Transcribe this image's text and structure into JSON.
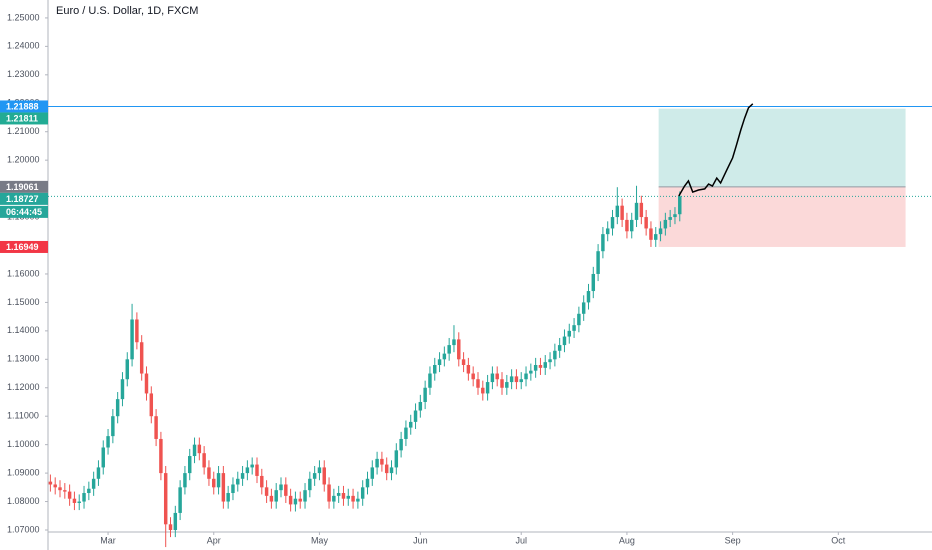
{
  "chart_data": {
    "type": "candlestick",
    "title": "Euro / U.S. Dollar, 1D, FXCM",
    "up_color": "#26a69a",
    "down_color": "#ef5350",
    "xlim": [
      -0.5,
      183.5
    ],
    "ylim": [
      1.07,
      1.2563
    ],
    "xticks": [
      {
        "value": 12,
        "label": "Mar"
      },
      {
        "value": 34,
        "label": "Apr"
      },
      {
        "value": 56,
        "label": "May"
      },
      {
        "value": 77,
        "label": "Jun"
      },
      {
        "value": 98,
        "label": "Jul"
      },
      {
        "value": 120,
        "label": "Aug"
      },
      {
        "value": 142,
        "label": "Sep"
      },
      {
        "value": 164,
        "label": "Oct"
      }
    ],
    "yticks": [
      {
        "value": 1.07,
        "label": "1.07000"
      },
      {
        "value": 1.08,
        "label": "1.08000"
      },
      {
        "value": 1.09,
        "label": "1.09000"
      },
      {
        "value": 1.1,
        "label": "1.10000"
      },
      {
        "value": 1.11,
        "label": "1.11000"
      },
      {
        "value": 1.12,
        "label": "1.12000"
      },
      {
        "value": 1.13,
        "label": "1.13000"
      },
      {
        "value": 1.14,
        "label": "1.14000"
      },
      {
        "value": 1.15,
        "label": "1.15000"
      },
      {
        "value": 1.16,
        "label": "1.16000"
      },
      {
        "value": 1.17,
        "label": "1.17000"
      },
      {
        "value": 1.18,
        "label": "1.18000"
      },
      {
        "value": 1.19,
        "label": "1.19000"
      },
      {
        "value": 1.2,
        "label": "1.20000"
      },
      {
        "value": 1.21,
        "label": "1.21000"
      },
      {
        "value": 1.22,
        "label": "1.22000"
      },
      {
        "value": 1.23,
        "label": "1.23000"
      },
      {
        "value": 1.24,
        "label": "1.24000"
      },
      {
        "value": 1.25,
        "label": "1.25000"
      }
    ],
    "ohlc": [
      [
        1.087,
        1.0895,
        1.0835,
        1.086
      ],
      [
        1.086,
        1.0885,
        1.0825,
        1.085
      ],
      [
        1.085,
        1.0875,
        1.0815,
        1.084
      ],
      [
        1.084,
        1.0865,
        1.081,
        1.0835
      ],
      [
        1.0835,
        1.086,
        1.0785,
        1.081
      ],
      [
        1.081,
        1.0835,
        1.077,
        1.0795
      ],
      [
        1.0795,
        1.0825,
        1.077,
        1.08
      ],
      [
        1.08,
        1.0855,
        1.0775,
        1.083
      ],
      [
        1.083,
        1.087,
        1.0805,
        1.0845
      ],
      [
        1.0845,
        1.0905,
        1.082,
        1.088
      ],
      [
        1.088,
        1.0945,
        1.0855,
        1.092
      ],
      [
        1.092,
        1.1015,
        1.0895,
        1.099
      ],
      [
        1.099,
        1.1055,
        1.0965,
        1.103
      ],
      [
        1.103,
        1.1125,
        1.1005,
        1.11
      ],
      [
        1.11,
        1.1185,
        1.1075,
        1.116
      ],
      [
        1.116,
        1.1255,
        1.1135,
        1.123
      ],
      [
        1.123,
        1.1325,
        1.1205,
        1.13
      ],
      [
        1.13,
        1.1495,
        1.1275,
        1.144
      ],
      [
        1.144,
        1.1465,
        1.1335,
        1.136
      ],
      [
        1.136,
        1.1385,
        1.1225,
        1.125
      ],
      [
        1.125,
        1.1275,
        1.1155,
        1.118
      ],
      [
        1.118,
        1.1205,
        1.1075,
        1.11
      ],
      [
        1.11,
        1.1125,
        1.0995,
        1.102
      ],
      [
        1.102,
        1.1045,
        1.0875,
        1.09
      ],
      [
        1.09,
        1.0925,
        1.064,
        1.072
      ],
      [
        1.072,
        1.0745,
        1.0675,
        1.07
      ],
      [
        1.07,
        1.0785,
        1.0675,
        1.076
      ],
      [
        1.076,
        1.0875,
        1.0735,
        1.085
      ],
      [
        1.085,
        1.0925,
        1.0825,
        1.09
      ],
      [
        1.09,
        1.0985,
        1.0875,
        1.096
      ],
      [
        1.096,
        1.1025,
        1.0935,
        1.1
      ],
      [
        1.1,
        1.1025,
        1.0945,
        1.097
      ],
      [
        1.097,
        1.0995,
        1.0895,
        1.092
      ],
      [
        1.092,
        1.0945,
        1.0855,
        1.088
      ],
      [
        1.088,
        1.0905,
        1.0825,
        1.085
      ],
      [
        1.085,
        1.0925,
        1.0825,
        1.09
      ],
      [
        1.09,
        1.0925,
        1.0775,
        1.08
      ],
      [
        1.08,
        1.0855,
        1.0775,
        1.083
      ],
      [
        1.083,
        1.0885,
        1.0805,
        1.086
      ],
      [
        1.086,
        1.0905,
        1.0835,
        1.088
      ],
      [
        1.088,
        1.0925,
        1.0855,
        1.09
      ],
      [
        1.09,
        1.0945,
        1.0875,
        1.092
      ],
      [
        1.092,
        1.0955,
        1.0895,
        1.093
      ],
      [
        1.093,
        1.0955,
        1.0865,
        1.089
      ],
      [
        1.089,
        1.0915,
        1.0825,
        1.085
      ],
      [
        1.085,
        1.0875,
        1.0795,
        1.082
      ],
      [
        1.082,
        1.0845,
        1.0775,
        1.08
      ],
      [
        1.08,
        1.0865,
        1.0775,
        1.084
      ],
      [
        1.084,
        1.0885,
        1.0815,
        1.086
      ],
      [
        1.086,
        1.0885,
        1.0795,
        1.082
      ],
      [
        1.082,
        1.0845,
        1.0765,
        1.079
      ],
      [
        1.079,
        1.0835,
        1.0765,
        1.081
      ],
      [
        1.081,
        1.0835,
        1.0775,
        1.08
      ],
      [
        1.08,
        1.0865,
        1.0775,
        1.084
      ],
      [
        1.084,
        1.0905,
        1.0815,
        1.088
      ],
      [
        1.088,
        1.0925,
        1.0855,
        1.09
      ],
      [
        1.09,
        1.0945,
        1.0875,
        1.092
      ],
      [
        1.092,
        1.0945,
        1.0835,
        1.086
      ],
      [
        1.086,
        1.0885,
        1.0775,
        1.08
      ],
      [
        1.08,
        1.0845,
        1.0775,
        1.082
      ],
      [
        1.082,
        1.0855,
        1.0795,
        1.083
      ],
      [
        1.083,
        1.0855,
        1.0785,
        1.081
      ],
      [
        1.081,
        1.0845,
        1.0785,
        1.082
      ],
      [
        1.082,
        1.0845,
        1.0775,
        1.08
      ],
      [
        1.08,
        1.0835,
        1.0775,
        1.081
      ],
      [
        1.081,
        1.0875,
        1.0785,
        1.085
      ],
      [
        1.085,
        1.0905,
        1.0825,
        1.088
      ],
      [
        1.088,
        1.0945,
        1.0855,
        1.092
      ],
      [
        1.092,
        1.0975,
        1.0895,
        1.095
      ],
      [
        1.095,
        1.0975,
        1.0905,
        1.093
      ],
      [
        1.093,
        1.0955,
        1.0875,
        1.09
      ],
      [
        1.09,
        1.0945,
        1.0875,
        1.092
      ],
      [
        1.092,
        1.1005,
        1.0895,
        1.098
      ],
      [
        1.098,
        1.1045,
        1.0955,
        1.102
      ],
      [
        1.102,
        1.1085,
        1.0995,
        1.106
      ],
      [
        1.106,
        1.1105,
        1.1035,
        1.108
      ],
      [
        1.108,
        1.1145,
        1.1055,
        1.112
      ],
      [
        1.112,
        1.1175,
        1.1095,
        1.115
      ],
      [
        1.115,
        1.1225,
        1.1125,
        1.12
      ],
      [
        1.12,
        1.1275,
        1.1175,
        1.125
      ],
      [
        1.125,
        1.1305,
        1.1225,
        1.128
      ],
      [
        1.128,
        1.1325,
        1.1255,
        1.13
      ],
      [
        1.13,
        1.1345,
        1.1275,
        1.132
      ],
      [
        1.132,
        1.1375,
        1.1295,
        1.135
      ],
      [
        1.135,
        1.142,
        1.1325,
        1.137
      ],
      [
        1.137,
        1.1395,
        1.1275,
        1.13
      ],
      [
        1.13,
        1.1325,
        1.1255,
        1.128
      ],
      [
        1.128,
        1.1305,
        1.1225,
        1.125
      ],
      [
        1.125,
        1.1275,
        1.1205,
        1.123
      ],
      [
        1.123,
        1.1255,
        1.1175,
        1.12
      ],
      [
        1.12,
        1.1225,
        1.1155,
        1.118
      ],
      [
        1.118,
        1.1245,
        1.1155,
        1.122
      ],
      [
        1.122,
        1.1275,
        1.1195,
        1.125
      ],
      [
        1.125,
        1.1275,
        1.1205,
        1.123
      ],
      [
        1.123,
        1.1255,
        1.1175,
        1.12
      ],
      [
        1.12,
        1.1245,
        1.1175,
        1.122
      ],
      [
        1.122,
        1.1265,
        1.1195,
        1.124
      ],
      [
        1.124,
        1.1265,
        1.1195,
        1.122
      ],
      [
        1.122,
        1.1255,
        1.1195,
        1.123
      ],
      [
        1.123,
        1.1275,
        1.1205,
        1.125
      ],
      [
        1.125,
        1.1285,
        1.1225,
        1.126
      ],
      [
        1.126,
        1.1305,
        1.1235,
        1.128
      ],
      [
        1.128,
        1.1305,
        1.1245,
        1.127
      ],
      [
        1.127,
        1.1315,
        1.1245,
        1.129
      ],
      [
        1.129,
        1.1325,
        1.1265,
        1.13
      ],
      [
        1.13,
        1.1355,
        1.1275,
        1.133
      ],
      [
        1.133,
        1.1375,
        1.1305,
        1.135
      ],
      [
        1.135,
        1.1405,
        1.1325,
        1.138
      ],
      [
        1.138,
        1.1425,
        1.1355,
        1.14
      ],
      [
        1.14,
        1.1445,
        1.1375,
        1.142
      ],
      [
        1.142,
        1.1485,
        1.1395,
        1.146
      ],
      [
        1.146,
        1.1525,
        1.1435,
        1.15
      ],
      [
        1.15,
        1.1565,
        1.1475,
        1.154
      ],
      [
        1.154,
        1.1625,
        1.1515,
        1.16
      ],
      [
        1.16,
        1.1705,
        1.1575,
        1.168
      ],
      [
        1.168,
        1.1765,
        1.1655,
        1.174
      ],
      [
        1.174,
        1.1785,
        1.1715,
        1.176
      ],
      [
        1.176,
        1.1825,
        1.1735,
        1.18
      ],
      [
        1.18,
        1.1905,
        1.1775,
        1.184
      ],
      [
        1.184,
        1.1865,
        1.1765,
        1.179
      ],
      [
        1.179,
        1.1815,
        1.1725,
        1.175
      ],
      [
        1.175,
        1.1815,
        1.1725,
        1.179
      ],
      [
        1.179,
        1.191,
        1.1765,
        1.185
      ],
      [
        1.185,
        1.1875,
        1.1775,
        1.18
      ],
      [
        1.18,
        1.1825,
        1.1735,
        1.176
      ],
      [
        1.176,
        1.1785,
        1.1695,
        1.172
      ],
      [
        1.172,
        1.1765,
        1.1695,
        1.174
      ],
      [
        1.174,
        1.1785,
        1.1715,
        1.176
      ],
      [
        1.176,
        1.1815,
        1.1735,
        1.179
      ],
      [
        1.179,
        1.1825,
        1.1765,
        1.18
      ],
      [
        1.18,
        1.1835,
        1.1775,
        1.181
      ],
      [
        1.181,
        1.189,
        1.1785,
        1.1873
      ]
    ],
    "position": {
      "x_start": 126.6,
      "x_end": 178,
      "entry": 1.19061,
      "target": 1.21811,
      "stop": 1.16949
    },
    "projection": {
      "color": "#000000",
      "x": [
        130.8,
        132,
        132.8,
        133.7,
        134.9,
        136.2,
        137,
        137.8,
        138.7,
        139.5,
        140.8,
        142,
        142.8,
        143.7,
        144.5,
        145.3,
        146.2
      ],
      "values": [
        1.1874,
        1.1909,
        1.1927,
        1.1888,
        1.1895,
        1.1899,
        1.1916,
        1.1909,
        1.1937,
        1.192,
        1.1966,
        1.2008,
        1.2053,
        1.2106,
        1.2148,
        1.2184,
        1.2198
      ]
    },
    "price_lines": [
      {
        "value": 1.21888,
        "color": "#2196f3",
        "style": "solid"
      },
      {
        "value": 1.18727,
        "color": "#26a69a",
        "style": "dotted"
      }
    ],
    "price_badges": [
      {
        "value": 1.21888,
        "color": "#2196f3"
      },
      {
        "value": 1.21811,
        "color": "#22ab94"
      },
      {
        "value": 1.19061,
        "color": "#787b86"
      },
      {
        "value": 1.18727,
        "color": "#26a69a"
      },
      {
        "value": 1.16949,
        "color": "#f23645"
      }
    ],
    "countdown": "06:44:45"
  }
}
